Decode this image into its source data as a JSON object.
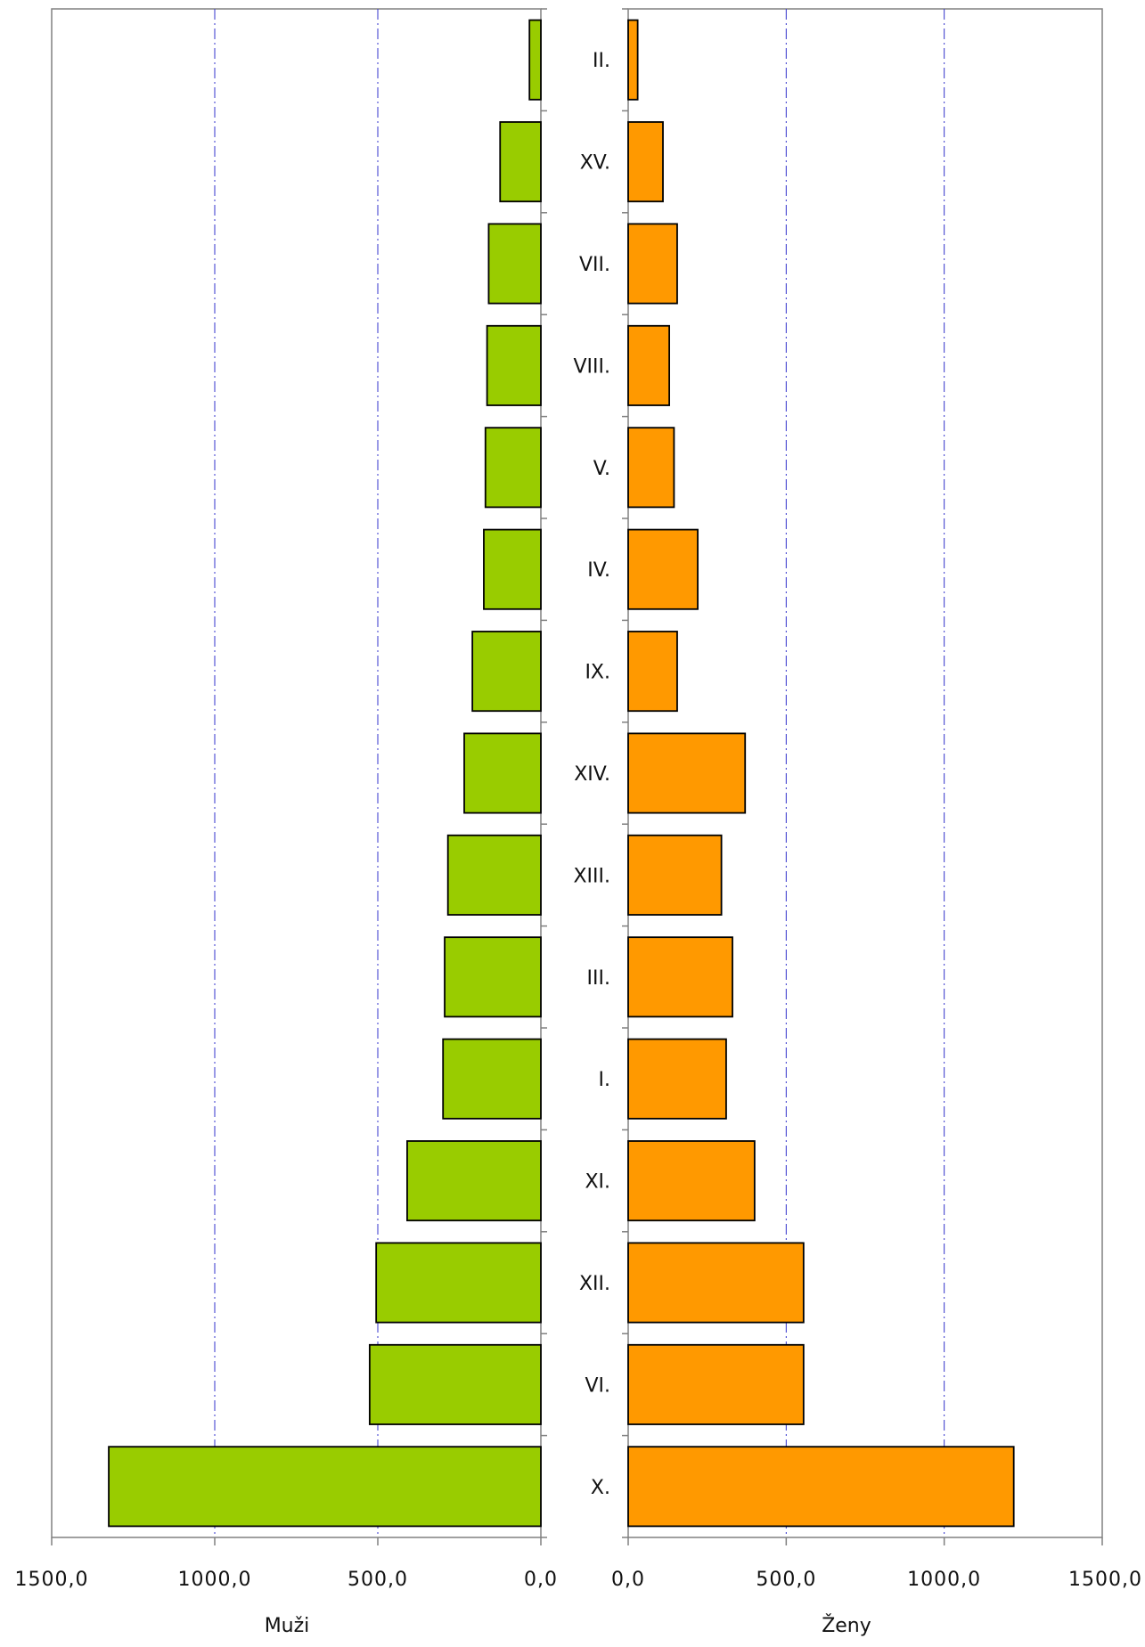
{
  "chart_data": {
    "type": "bar",
    "orientation": "horizontal",
    "layout": "population-pyramid",
    "categories": [
      "II.",
      "XV.",
      "VII.",
      "VIII.",
      "V.",
      "IV.",
      "IX.",
      "XIV.",
      "XIII.",
      "III.",
      "I.",
      "XI.",
      "XII.",
      "VI.",
      "X."
    ],
    "series": [
      {
        "name": "Muži",
        "color": "#99cc00",
        "values": [
          35,
          125,
          160,
          165,
          170,
          175,
          210,
          235,
          285,
          295,
          300,
          410,
          505,
          525,
          1325
        ]
      },
      {
        "name": "Ženy",
        "color": "#ff9900",
        "values": [
          30,
          110,
          155,
          130,
          145,
          220,
          155,
          370,
          295,
          330,
          310,
          400,
          555,
          555,
          1220
        ]
      }
    ],
    "xlabel_left": "Muži",
    "xlabel_right": "Ženy",
    "xlim": [
      0,
      1500
    ],
    "left_ticks": [
      "1500,0",
      "1000,0",
      "500,0",
      "0,0"
    ],
    "right_ticks": [
      "0,0",
      "500,0",
      "1000,0",
      "1500,0"
    ],
    "grid": "vertical dash-dot gridlines at 500 and 1000",
    "grid_color": "#3333cc",
    "axis_color": "#808080",
    "bar_outline": "#000000"
  }
}
